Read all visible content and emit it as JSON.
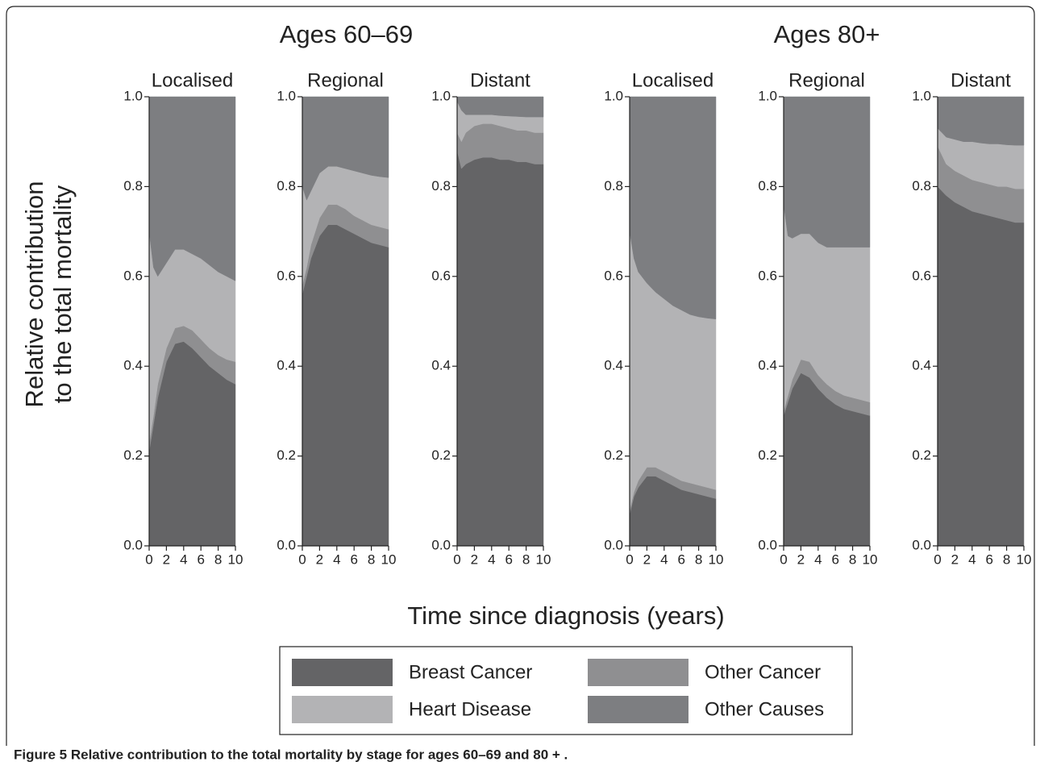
{
  "group_titles": [
    "Ages 60–69",
    "Ages 80+"
  ],
  "ylabel": [
    "Relative contribution",
    "to the total mortality"
  ],
  "xlabel": "Time since diagnosis (years)",
  "caption": "Figure 5 Relative contribution to the total mortality by stage for ages 60–69 and 80 + .",
  "chart_data": [
    {
      "type": "area",
      "stacked": true,
      "title": "Localised",
      "x": [
        0,
        0.5,
        1,
        2,
        3,
        4,
        5,
        6,
        7,
        8,
        9,
        10
      ],
      "xlim": [
        0,
        10
      ],
      "xticks": [
        0,
        2,
        4,
        6,
        8,
        10
      ],
      "ylim": [
        0,
        1
      ],
      "yticks": [
        {
          "value": 0,
          "label": "0.0"
        },
        0.2,
        0.4,
        0.6,
        0.8,
        {
          "value": 1,
          "label": "1.0"
        }
      ],
      "series": [
        {
          "name": "Breast Cancer",
          "color": "#646466",
          "values": [
            0.21,
            0.27,
            0.33,
            0.41,
            0.45,
            0.455,
            0.44,
            0.42,
            0.4,
            0.385,
            0.37,
            0.36
          ]
        },
        {
          "name": "Other Cancer",
          "color": "#8f8f91",
          "values": [
            0.02,
            0.02,
            0.03,
            0.03,
            0.035,
            0.035,
            0.04,
            0.04,
            0.04,
            0.04,
            0.045,
            0.05
          ]
        },
        {
          "name": "Heart Disease",
          "color": "#b3b3b5",
          "values": [
            0.47,
            0.33,
            0.24,
            0.19,
            0.175,
            0.17,
            0.17,
            0.18,
            0.185,
            0.185,
            0.185,
            0.18
          ]
        },
        {
          "name": "Other Causes",
          "color": "#7d7e81",
          "values": [
            0.3,
            0.38,
            0.4,
            0.37,
            0.34,
            0.34,
            0.35,
            0.36,
            0.375,
            0.39,
            0.4,
            0.41
          ]
        }
      ]
    },
    {
      "type": "area",
      "stacked": true,
      "title": "Regional",
      "x": [
        0,
        0.5,
        1,
        2,
        3,
        4,
        5,
        6,
        7,
        8,
        9,
        10
      ],
      "xlim": [
        0,
        10
      ],
      "xticks": [
        0,
        2,
        4,
        6,
        8,
        10
      ],
      "ylim": [
        0,
        1
      ],
      "yticks": [
        {
          "value": 0,
          "label": "0.0"
        },
        0.2,
        0.4,
        0.6,
        0.8,
        {
          "value": 1,
          "label": "1.0"
        }
      ],
      "series": [
        {
          "name": "Breast Cancer",
          "color": "#646466",
          "values": [
            0.56,
            0.6,
            0.64,
            0.69,
            0.715,
            0.715,
            0.705,
            0.695,
            0.685,
            0.675,
            0.67,
            0.665
          ]
        },
        {
          "name": "Other Cancer",
          "color": "#8f8f91",
          "values": [
            0.02,
            0.02,
            0.03,
            0.04,
            0.045,
            0.045,
            0.045,
            0.04,
            0.04,
            0.04,
            0.04,
            0.04
          ]
        },
        {
          "name": "Heart Disease",
          "color": "#b3b3b5",
          "values": [
            0.22,
            0.15,
            0.12,
            0.1,
            0.085,
            0.085,
            0.09,
            0.1,
            0.105,
            0.11,
            0.112,
            0.115
          ]
        },
        {
          "name": "Other Causes",
          "color": "#7d7e81",
          "values": [
            0.2,
            0.23,
            0.21,
            0.17,
            0.155,
            0.155,
            0.16,
            0.165,
            0.17,
            0.175,
            0.178,
            0.18
          ]
        }
      ]
    },
    {
      "type": "area",
      "stacked": true,
      "title": "Distant",
      "x": [
        0,
        0.5,
        1,
        2,
        3,
        4,
        5,
        6,
        7,
        8,
        9,
        10
      ],
      "xlim": [
        0,
        10
      ],
      "xticks": [
        0,
        2,
        4,
        6,
        8,
        10
      ],
      "ylim": [
        0,
        1
      ],
      "yticks": [
        {
          "value": 0,
          "label": "0.0"
        },
        0.2,
        0.4,
        0.6,
        0.8,
        {
          "value": 1,
          "label": "1.0"
        }
      ],
      "series": [
        {
          "name": "Breast Cancer",
          "color": "#646466",
          "values": [
            0.88,
            0.84,
            0.85,
            0.86,
            0.865,
            0.865,
            0.86,
            0.86,
            0.855,
            0.855,
            0.85,
            0.85
          ]
        },
        {
          "name": "Other Cancer",
          "color": "#8f8f91",
          "values": [
            0.04,
            0.06,
            0.07,
            0.075,
            0.075,
            0.075,
            0.075,
            0.07,
            0.07,
            0.07,
            0.07,
            0.07
          ]
        },
        {
          "name": "Heart Disease",
          "color": "#b3b3b5",
          "values": [
            0.07,
            0.07,
            0.04,
            0.025,
            0.02,
            0.02,
            0.023,
            0.027,
            0.031,
            0.03,
            0.035,
            0.035
          ]
        },
        {
          "name": "Other Causes",
          "color": "#7d7e81",
          "values": [
            0.01,
            0.03,
            0.04,
            0.04,
            0.04,
            0.04,
            0.042,
            0.043,
            0.044,
            0.045,
            0.045,
            0.045
          ]
        }
      ]
    },
    {
      "type": "area",
      "stacked": true,
      "title": "Localised",
      "x": [
        0,
        0.5,
        1,
        2,
        3,
        4,
        5,
        6,
        7,
        8,
        9,
        10
      ],
      "xlim": [
        0,
        10
      ],
      "xticks": [
        0,
        2,
        4,
        6,
        8,
        10
      ],
      "ylim": [
        0,
        1
      ],
      "yticks": [
        {
          "value": 0,
          "label": "0.0"
        },
        0.2,
        0.4,
        0.6,
        0.8,
        {
          "value": 1,
          "label": "1.0"
        }
      ],
      "series": [
        {
          "name": "Breast Cancer",
          "color": "#646466",
          "values": [
            0.07,
            0.11,
            0.13,
            0.155,
            0.155,
            0.145,
            0.135,
            0.125,
            0.12,
            0.115,
            0.11,
            0.105
          ]
        },
        {
          "name": "Other Cancer",
          "color": "#8f8f91",
          "values": [
            0.01,
            0.01,
            0.015,
            0.02,
            0.02,
            0.02,
            0.02,
            0.02,
            0.02,
            0.02,
            0.02,
            0.02
          ]
        },
        {
          "name": "Heart Disease",
          "color": "#b3b3b5",
          "values": [
            0.62,
            0.52,
            0.465,
            0.41,
            0.39,
            0.385,
            0.38,
            0.38,
            0.375,
            0.375,
            0.377,
            0.38
          ]
        },
        {
          "name": "Other Causes",
          "color": "#7d7e81",
          "values": [
            0.3,
            0.36,
            0.39,
            0.415,
            0.435,
            0.45,
            0.465,
            0.475,
            0.485,
            0.49,
            0.493,
            0.495
          ]
        }
      ]
    },
    {
      "type": "area",
      "stacked": true,
      "title": "Regional",
      "x": [
        0,
        0.5,
        1,
        2,
        3,
        4,
        5,
        6,
        7,
        8,
        9,
        10
      ],
      "xlim": [
        0,
        10
      ],
      "xticks": [
        0,
        2,
        4,
        6,
        8,
        10
      ],
      "ylim": [
        0,
        1
      ],
      "yticks": [
        {
          "value": 0,
          "label": "0.0"
        },
        0.2,
        0.4,
        0.6,
        0.8,
        {
          "value": 1,
          "label": "1.0"
        }
      ],
      "series": [
        {
          "name": "Breast Cancer",
          "color": "#646466",
          "values": [
            0.29,
            0.32,
            0.35,
            0.385,
            0.375,
            0.35,
            0.33,
            0.315,
            0.305,
            0.3,
            0.295,
            0.29
          ]
        },
        {
          "name": "Other Cancer",
          "color": "#8f8f91",
          "values": [
            0.01,
            0.015,
            0.02,
            0.03,
            0.035,
            0.03,
            0.03,
            0.03,
            0.03,
            0.03,
            0.03,
            0.03
          ]
        },
        {
          "name": "Heart Disease",
          "color": "#b3b3b5",
          "values": [
            0.46,
            0.355,
            0.315,
            0.28,
            0.285,
            0.295,
            0.305,
            0.32,
            0.33,
            0.335,
            0.34,
            0.345
          ]
        },
        {
          "name": "Other Causes",
          "color": "#7d7e81",
          "values": [
            0.24,
            0.31,
            0.315,
            0.305,
            0.305,
            0.325,
            0.335,
            0.335,
            0.335,
            0.335,
            0.335,
            0.335
          ]
        }
      ]
    },
    {
      "type": "area",
      "stacked": true,
      "title": "Distant",
      "x": [
        0,
        0.5,
        1,
        2,
        3,
        4,
        5,
        6,
        7,
        8,
        9,
        10
      ],
      "xlim": [
        0,
        10
      ],
      "xticks": [
        0,
        2,
        4,
        6,
        8,
        10
      ],
      "ylim": [
        0,
        1
      ],
      "yticks": [
        {
          "value": 0,
          "label": "0.0"
        },
        0.2,
        0.4,
        0.6,
        0.8,
        {
          "value": 1,
          "label": "1.0"
        }
      ],
      "series": [
        {
          "name": "Breast Cancer",
          "color": "#646466",
          "values": [
            0.8,
            0.79,
            0.78,
            0.765,
            0.755,
            0.745,
            0.74,
            0.735,
            0.73,
            0.725,
            0.72,
            0.72
          ]
        },
        {
          "name": "Other Cancer",
          "color": "#8f8f91",
          "values": [
            0.09,
            0.08,
            0.07,
            0.07,
            0.07,
            0.07,
            0.07,
            0.07,
            0.07,
            0.075,
            0.075,
            0.075
          ]
        },
        {
          "name": "Heart Disease",
          "color": "#b3b3b5",
          "values": [
            0.04,
            0.05,
            0.06,
            0.07,
            0.075,
            0.085,
            0.087,
            0.09,
            0.095,
            0.093,
            0.097,
            0.097
          ]
        },
        {
          "name": "Other Causes",
          "color": "#7d7e81",
          "values": [
            0.07,
            0.08,
            0.09,
            0.095,
            0.1,
            0.1,
            0.103,
            0.105,
            0.105,
            0.107,
            0.108,
            0.108
          ]
        }
      ]
    }
  ]
}
